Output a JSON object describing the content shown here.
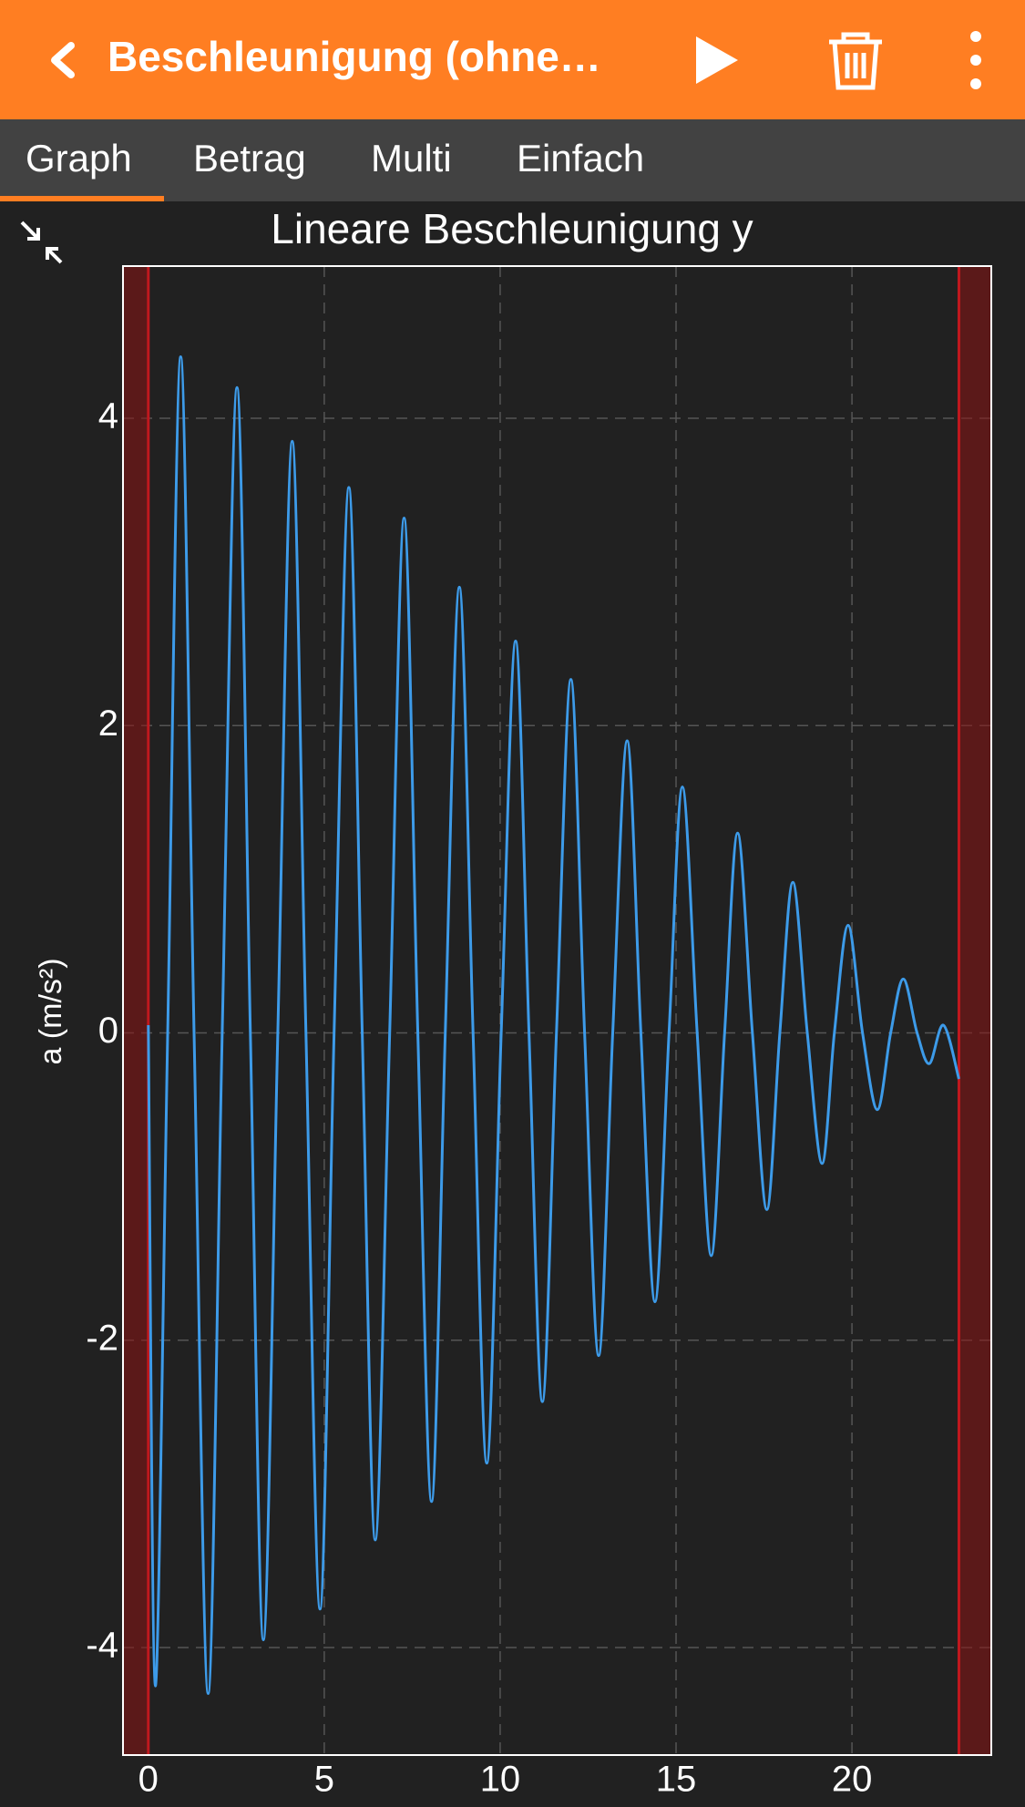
{
  "header": {
    "title": "Beschleunigung (ohne…"
  },
  "tabs": [
    "Graph",
    "Betrag",
    "Multi",
    "Einfach"
  ],
  "chart_data": {
    "type": "line",
    "title": "Lineare Beschleunigung y",
    "y_label": "a (m/s²)",
    "color": "#3d9be9",
    "grid": true,
    "xlim": [
      -0.72,
      23.96
    ],
    "ylim": [
      -4.7,
      4.99
    ],
    "xticks": [
      0,
      5,
      10,
      15,
      20
    ],
    "yticks": [
      -4,
      -2,
      0,
      2,
      4
    ],
    "x": [
      0.0,
      0.2,
      0.55,
      0.92,
      1.3,
      1.7,
      2.1,
      2.52,
      2.9,
      3.27,
      3.68,
      4.09,
      4.48,
      4.88,
      5.28,
      5.7,
      6.08,
      6.45,
      6.86,
      7.27,
      7.66,
      8.05,
      8.44,
      8.84,
      9.23,
      9.62,
      10.03,
      10.44,
      10.82,
      11.2,
      11.6,
      12.01,
      12.4,
      12.8,
      13.2,
      13.61,
      14.0,
      14.4,
      14.8,
      15.18,
      15.6,
      16.0,
      16.38,
      16.75,
      17.17,
      17.58,
      17.95,
      18.32,
      18.73,
      19.15,
      19.5,
      19.89,
      20.3,
      20.72,
      21.1,
      21.46,
      21.85,
      22.2,
      22.6,
      23.04
    ],
    "values": [
      0.05,
      -4.25,
      0,
      4.4,
      0,
      -4.3,
      0,
      4.2,
      0,
      -3.95,
      0,
      3.85,
      0,
      -3.75,
      0,
      3.55,
      0,
      -3.3,
      0,
      3.35,
      0,
      -3.05,
      0,
      2.9,
      0,
      -2.8,
      0,
      2.55,
      0,
      -2.4,
      0,
      2.3,
      0,
      -2.1,
      0,
      1.9,
      0,
      -1.75,
      0,
      1.6,
      0,
      -1.45,
      0,
      1.3,
      0,
      -1.15,
      0,
      0.98,
      0,
      -0.85,
      0,
      0.7,
      0,
      -0.5,
      0,
      0.35,
      0,
      -0.2,
      0.05,
      -0.3
    ]
  }
}
